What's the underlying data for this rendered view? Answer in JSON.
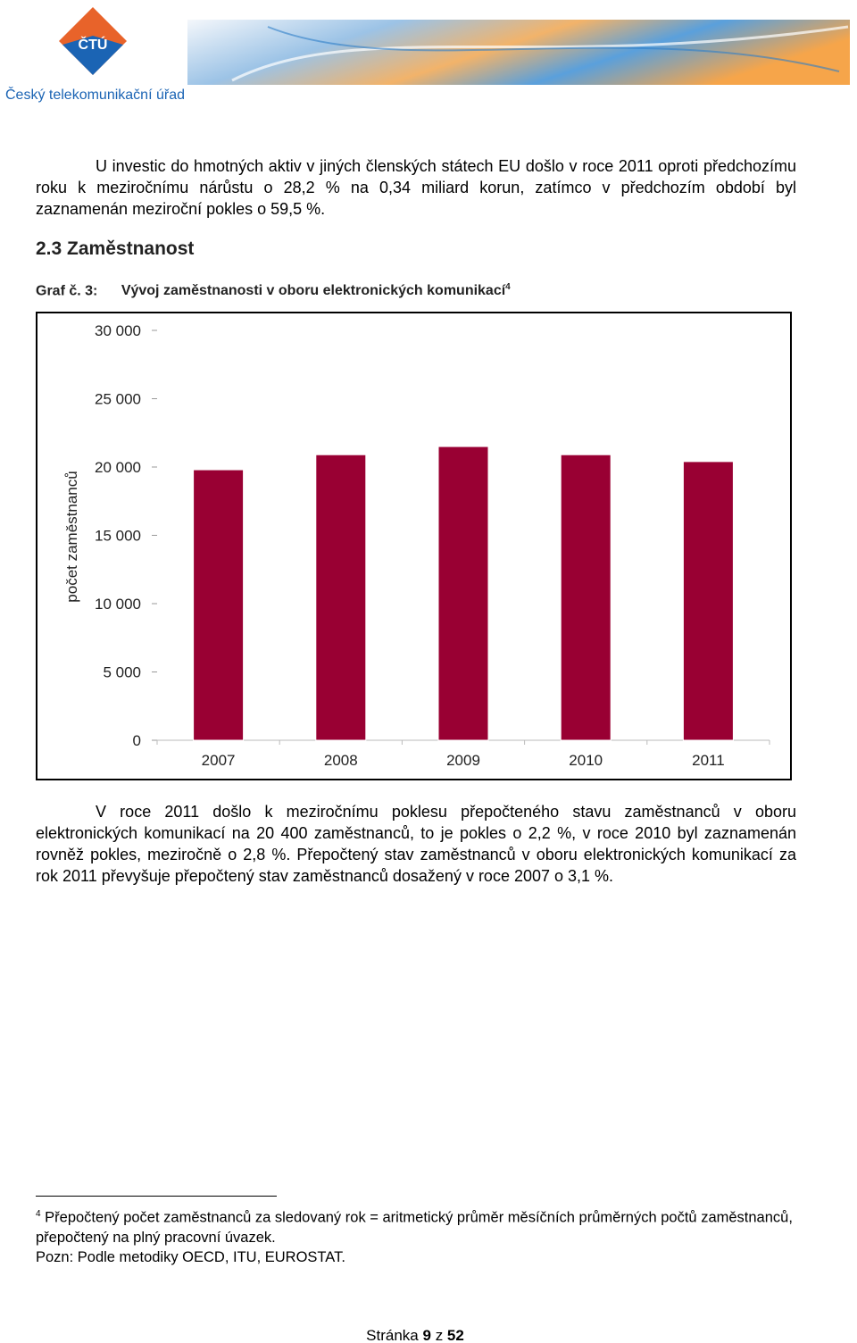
{
  "header": {
    "logo_text": "ČTÚ",
    "organization": "Český telekomunikační úřad"
  },
  "paragraph_1": "U investic do hmotných aktiv v jiných členských státech EU došlo v roce 2011 oproti předchozímu roku k meziročnímu nárůstu o 28,2 % na 0,34 miliard korun, zatímco v předchozím období byl zaznamenán meziroční pokles o 59,5 %.",
  "section": {
    "number": "2.3",
    "title": "Zaměstnanost"
  },
  "caption": {
    "label": "Graf č. 3:",
    "footnote_ref": "4"
  },
  "chart_data": {
    "type": "bar",
    "title": "Vývoj zaměstnanosti v oboru elektronických komunikací",
    "ylabel": "počet zaměstnanců",
    "categories": [
      "2007",
      "2008",
      "2009",
      "2010",
      "2011"
    ],
    "values": [
      19800,
      20900,
      21500,
      20900,
      20400
    ],
    "color": "#990033",
    "ylim": [
      0,
      30000
    ],
    "yticks": [
      0,
      {
        "value": 5000,
        "label": "5 000"
      },
      {
        "value": 10000,
        "label": "10 000"
      },
      {
        "value": 15000,
        "label": "15 000"
      },
      {
        "value": 20000,
        "label": "20 000"
      },
      {
        "value": 25000,
        "label": "25 000"
      },
      {
        "value": 30000,
        "label": "30 000"
      }
    ],
    "grid": false
  },
  "paragraph_2": "V roce 2011 došlo k meziročnímu poklesu přepočteného stavu zaměstnanců v oboru elektronických komunikací na 20 400 zaměstnanců, to je pokles o 2,2 %, v roce 2010 byl zaznamenán rovněž pokles, meziročně o 2,8 %. Přepočtený stav zaměstnanců v oboru elektronických komunikací za rok 2011 převyšuje přepočtený stav zaměstnanců dosažený v roce 2007 o 3,1 %.",
  "footnote": {
    "marker": "4",
    "text": "Přepočtený počet zaměstnanců za sledovaný rok = aritmetický průměr měsíčních průměrných počtů zaměstnanců, přepočtený na plný pracovní úvazek.",
    "note": "Pozn: Podle metodiky OECD, ITU, EUROSTAT."
  },
  "footer": {
    "word": "Stránka",
    "page": "9",
    "of": "z",
    "total": "52"
  }
}
